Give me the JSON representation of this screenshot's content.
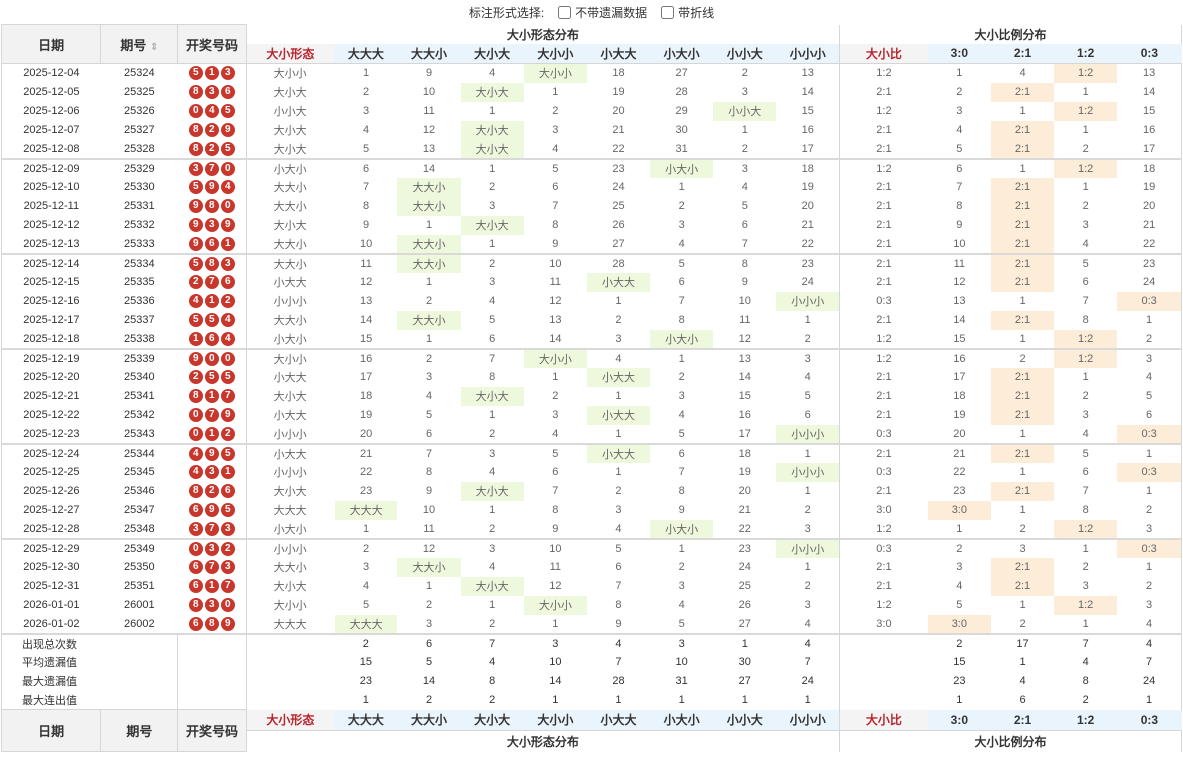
{
  "topbar": {
    "label": "标注形式选择:",
    "opt1": "不带遗漏数据",
    "opt2": "带折线"
  },
  "headers": {
    "date": "日期",
    "issue": "期号",
    "numbers": "开奖号码",
    "group1": "大小形态分布",
    "group2": "大小比例分布",
    "shape_col": "大小形态",
    "ratio_col": "大小比",
    "shapes": [
      "大大大",
      "大大小",
      "大小大",
      "大小小",
      "小大大",
      "小大小",
      "小小大",
      "小小小"
    ],
    "ratios": [
      "3:0",
      "2:1",
      "1:2",
      "0:3"
    ],
    "sort_icon": "sort-icon"
  },
  "rows": [
    {
      "date": "2025-12-04",
      "issue": "25324",
      "nums": [
        "5",
        "1",
        "3"
      ],
      "shape": "大小小",
      "m": [
        "1",
        "9",
        "4",
        "大小小",
        "18",
        "27",
        "2",
        "13"
      ],
      "h": 3,
      "ratio": "1:2",
      "r": [
        "1",
        "4",
        "1:2",
        "13"
      ],
      "rh": 2
    },
    {
      "date": "2025-12-05",
      "issue": "25325",
      "nums": [
        "8",
        "3",
        "6"
      ],
      "shape": "大小大",
      "m": [
        "2",
        "10",
        "大小大",
        "1",
        "19",
        "28",
        "3",
        "14"
      ],
      "h": 2,
      "ratio": "2:1",
      "r": [
        "2",
        "2:1",
        "1",
        "14"
      ],
      "rh": 1
    },
    {
      "date": "2025-12-06",
      "issue": "25326",
      "nums": [
        "0",
        "4",
        "5"
      ],
      "shape": "小小大",
      "m": [
        "3",
        "11",
        "1",
        "2",
        "20",
        "29",
        "小小大",
        "15"
      ],
      "h": 6,
      "ratio": "1:2",
      "r": [
        "3",
        "1",
        "1:2",
        "15"
      ],
      "rh": 2
    },
    {
      "date": "2025-12-07",
      "issue": "25327",
      "nums": [
        "8",
        "2",
        "9"
      ],
      "shape": "大小大",
      "m": [
        "4",
        "12",
        "大小大",
        "3",
        "21",
        "30",
        "1",
        "16"
      ],
      "h": 2,
      "ratio": "2:1",
      "r": [
        "4",
        "2:1",
        "1",
        "16"
      ],
      "rh": 1
    },
    {
      "date": "2025-12-08",
      "issue": "25328",
      "nums": [
        "8",
        "2",
        "5"
      ],
      "shape": "大小大",
      "m": [
        "5",
        "13",
        "大小大",
        "4",
        "22",
        "31",
        "2",
        "17"
      ],
      "h": 2,
      "ratio": "2:1",
      "r": [
        "5",
        "2:1",
        "2",
        "17"
      ],
      "rh": 1
    },
    {
      "date": "2025-12-09",
      "issue": "25329",
      "nums": [
        "3",
        "7",
        "0"
      ],
      "shape": "小大小",
      "m": [
        "6",
        "14",
        "1",
        "5",
        "23",
        "小大小",
        "3",
        "18"
      ],
      "h": 5,
      "ratio": "1:2",
      "r": [
        "6",
        "1",
        "1:2",
        "18"
      ],
      "rh": 2
    },
    {
      "date": "2025-12-10",
      "issue": "25330",
      "nums": [
        "5",
        "9",
        "4"
      ],
      "shape": "大大小",
      "m": [
        "7",
        "大大小",
        "2",
        "6",
        "24",
        "1",
        "4",
        "19"
      ],
      "h": 1,
      "ratio": "2:1",
      "r": [
        "7",
        "2:1",
        "1",
        "19"
      ],
      "rh": 1
    },
    {
      "date": "2025-12-11",
      "issue": "25331",
      "nums": [
        "9",
        "8",
        "0"
      ],
      "shape": "大大小",
      "m": [
        "8",
        "大大小",
        "3",
        "7",
        "25",
        "2",
        "5",
        "20"
      ],
      "h": 1,
      "ratio": "2:1",
      "r": [
        "8",
        "2:1",
        "2",
        "20"
      ],
      "rh": 1
    },
    {
      "date": "2025-12-12",
      "issue": "25332",
      "nums": [
        "9",
        "3",
        "9"
      ],
      "shape": "大小大",
      "m": [
        "9",
        "1",
        "大小大",
        "8",
        "26",
        "3",
        "6",
        "21"
      ],
      "h": 2,
      "ratio": "2:1",
      "r": [
        "9",
        "2:1",
        "3",
        "21"
      ],
      "rh": 1
    },
    {
      "date": "2025-12-13",
      "issue": "25333",
      "nums": [
        "9",
        "6",
        "1"
      ],
      "shape": "大大小",
      "m": [
        "10",
        "大大小",
        "1",
        "9",
        "27",
        "4",
        "7",
        "22"
      ],
      "h": 1,
      "ratio": "2:1",
      "r": [
        "10",
        "2:1",
        "4",
        "22"
      ],
      "rh": 1
    },
    {
      "date": "2025-12-14",
      "issue": "25334",
      "nums": [
        "5",
        "8",
        "3"
      ],
      "shape": "大大小",
      "m": [
        "11",
        "大大小",
        "2",
        "10",
        "28",
        "5",
        "8",
        "23"
      ],
      "h": 1,
      "ratio": "2:1",
      "r": [
        "11",
        "2:1",
        "5",
        "23"
      ],
      "rh": 1
    },
    {
      "date": "2025-12-15",
      "issue": "25335",
      "nums": [
        "2",
        "7",
        "6"
      ],
      "shape": "小大大",
      "m": [
        "12",
        "1",
        "3",
        "11",
        "小大大",
        "6",
        "9",
        "24"
      ],
      "h": 4,
      "ratio": "2:1",
      "r": [
        "12",
        "2:1",
        "6",
        "24"
      ],
      "rh": 1
    },
    {
      "date": "2025-12-16",
      "issue": "25336",
      "nums": [
        "4",
        "1",
        "2"
      ],
      "shape": "小小小",
      "m": [
        "13",
        "2",
        "4",
        "12",
        "1",
        "7",
        "10",
        "小小小"
      ],
      "h": 7,
      "ratio": "0:3",
      "r": [
        "13",
        "1",
        "7",
        "0:3"
      ],
      "rh": 3
    },
    {
      "date": "2025-12-17",
      "issue": "25337",
      "nums": [
        "5",
        "5",
        "4"
      ],
      "shape": "大大小",
      "m": [
        "14",
        "大大小",
        "5",
        "13",
        "2",
        "8",
        "11",
        "1"
      ],
      "h": 1,
      "ratio": "2:1",
      "r": [
        "14",
        "2:1",
        "8",
        "1"
      ],
      "rh": 1
    },
    {
      "date": "2025-12-18",
      "issue": "25338",
      "nums": [
        "1",
        "6",
        "4"
      ],
      "shape": "小大小",
      "m": [
        "15",
        "1",
        "6",
        "14",
        "3",
        "小大小",
        "12",
        "2"
      ],
      "h": 5,
      "ratio": "1:2",
      "r": [
        "15",
        "1",
        "1:2",
        "2"
      ],
      "rh": 2
    },
    {
      "date": "2025-12-19",
      "issue": "25339",
      "nums": [
        "9",
        "0",
        "0"
      ],
      "shape": "大小小",
      "m": [
        "16",
        "2",
        "7",
        "大小小",
        "4",
        "1",
        "13",
        "3"
      ],
      "h": 3,
      "ratio": "1:2",
      "r": [
        "16",
        "2",
        "1:2",
        "3"
      ],
      "rh": 2
    },
    {
      "date": "2025-12-20",
      "issue": "25340",
      "nums": [
        "2",
        "5",
        "5"
      ],
      "shape": "小大大",
      "m": [
        "17",
        "3",
        "8",
        "1",
        "小大大",
        "2",
        "14",
        "4"
      ],
      "h": 4,
      "ratio": "2:1",
      "r": [
        "17",
        "2:1",
        "1",
        "4"
      ],
      "rh": 1
    },
    {
      "date": "2025-12-21",
      "issue": "25341",
      "nums": [
        "8",
        "1",
        "7"
      ],
      "shape": "大小大",
      "m": [
        "18",
        "4",
        "大小大",
        "2",
        "1",
        "3",
        "15",
        "5"
      ],
      "h": 2,
      "ratio": "2:1",
      "r": [
        "18",
        "2:1",
        "2",
        "5"
      ],
      "rh": 1
    },
    {
      "date": "2025-12-22",
      "issue": "25342",
      "nums": [
        "0",
        "7",
        "9"
      ],
      "shape": "小大大",
      "m": [
        "19",
        "5",
        "1",
        "3",
        "小大大",
        "4",
        "16",
        "6"
      ],
      "h": 4,
      "ratio": "2:1",
      "r": [
        "19",
        "2:1",
        "3",
        "6"
      ],
      "rh": 1
    },
    {
      "date": "2025-12-23",
      "issue": "25343",
      "nums": [
        "0",
        "1",
        "2"
      ],
      "shape": "小小小",
      "m": [
        "20",
        "6",
        "2",
        "4",
        "1",
        "5",
        "17",
        "小小小"
      ],
      "h": 7,
      "ratio": "0:3",
      "r": [
        "20",
        "1",
        "4",
        "0:3"
      ],
      "rh": 3
    },
    {
      "date": "2025-12-24",
      "issue": "25344",
      "nums": [
        "4",
        "9",
        "5"
      ],
      "shape": "小大大",
      "m": [
        "21",
        "7",
        "3",
        "5",
        "小大大",
        "6",
        "18",
        "1"
      ],
      "h": 4,
      "ratio": "2:1",
      "r": [
        "21",
        "2:1",
        "5",
        "1"
      ],
      "rh": 1
    },
    {
      "date": "2025-12-25",
      "issue": "25345",
      "nums": [
        "4",
        "3",
        "1"
      ],
      "shape": "小小小",
      "m": [
        "22",
        "8",
        "4",
        "6",
        "1",
        "7",
        "19",
        "小小小"
      ],
      "h": 7,
      "ratio": "0:3",
      "r": [
        "22",
        "1",
        "6",
        "0:3"
      ],
      "rh": 3
    },
    {
      "date": "2025-12-26",
      "issue": "25346",
      "nums": [
        "8",
        "2",
        "6"
      ],
      "shape": "大小大",
      "m": [
        "23",
        "9",
        "大小大",
        "7",
        "2",
        "8",
        "20",
        "1"
      ],
      "h": 2,
      "ratio": "2:1",
      "r": [
        "23",
        "2:1",
        "7",
        "1"
      ],
      "rh": 1
    },
    {
      "date": "2025-12-27",
      "issue": "25347",
      "nums": [
        "6",
        "9",
        "5"
      ],
      "shape": "大大大",
      "m": [
        "大大大",
        "10",
        "1",
        "8",
        "3",
        "9",
        "21",
        "2"
      ],
      "h": 0,
      "ratio": "3:0",
      "r": [
        "3:0",
        "1",
        "8",
        "2"
      ],
      "rh": 0
    },
    {
      "date": "2025-12-28",
      "issue": "25348",
      "nums": [
        "3",
        "7",
        "3"
      ],
      "shape": "小大小",
      "m": [
        "1",
        "11",
        "2",
        "9",
        "4",
        "小大小",
        "22",
        "3"
      ],
      "h": 5,
      "ratio": "1:2",
      "r": [
        "1",
        "2",
        "1:2",
        "3"
      ],
      "rh": 2
    },
    {
      "date": "2025-12-29",
      "issue": "25349",
      "nums": [
        "0",
        "3",
        "2"
      ],
      "shape": "小小小",
      "m": [
        "2",
        "12",
        "3",
        "10",
        "5",
        "1",
        "23",
        "小小小"
      ],
      "h": 7,
      "ratio": "0:3",
      "r": [
        "2",
        "3",
        "1",
        "0:3"
      ],
      "rh": 3
    },
    {
      "date": "2025-12-30",
      "issue": "25350",
      "nums": [
        "6",
        "7",
        "3"
      ],
      "shape": "大大小",
      "m": [
        "3",
        "大大小",
        "4",
        "11",
        "6",
        "2",
        "24",
        "1"
      ],
      "h": 1,
      "ratio": "2:1",
      "r": [
        "3",
        "2:1",
        "2",
        "1"
      ],
      "rh": 1
    },
    {
      "date": "2025-12-31",
      "issue": "25351",
      "nums": [
        "6",
        "1",
        "7"
      ],
      "shape": "大小大",
      "m": [
        "4",
        "1",
        "大小大",
        "12",
        "7",
        "3",
        "25",
        "2"
      ],
      "h": 2,
      "ratio": "2:1",
      "r": [
        "4",
        "2:1",
        "3",
        "2"
      ],
      "rh": 1
    },
    {
      "date": "2026-01-01",
      "issue": "26001",
      "nums": [
        "8",
        "3",
        "0"
      ],
      "shape": "大小小",
      "m": [
        "5",
        "2",
        "1",
        "大小小",
        "8",
        "4",
        "26",
        "3"
      ],
      "h": 3,
      "ratio": "1:2",
      "r": [
        "5",
        "1",
        "1:2",
        "3"
      ],
      "rh": 2
    },
    {
      "date": "2026-01-02",
      "issue": "26002",
      "nums": [
        "6",
        "8",
        "9"
      ],
      "shape": "大大大",
      "m": [
        "大大大",
        "3",
        "2",
        "1",
        "9",
        "5",
        "27",
        "4"
      ],
      "h": 0,
      "ratio": "3:0",
      "r": [
        "3:0",
        "2",
        "1",
        "4"
      ],
      "rh": 0
    }
  ],
  "stats": [
    {
      "label": "出现总次数",
      "s": [
        "2",
        "6",
        "7",
        "3",
        "4",
        "3",
        "1",
        "4"
      ],
      "r": [
        "2",
        "17",
        "7",
        "4"
      ]
    },
    {
      "label": "平均遗漏值",
      "s": [
        "15",
        "5",
        "4",
        "10",
        "7",
        "10",
        "30",
        "7"
      ],
      "r": [
        "15",
        "1",
        "4",
        "7"
      ]
    },
    {
      "label": "最大遗漏值",
      "s": [
        "23",
        "14",
        "8",
        "14",
        "28",
        "31",
        "27",
        "24"
      ],
      "r": [
        "23",
        "4",
        "8",
        "24"
      ]
    },
    {
      "label": "最大连出值",
      "s": [
        "1",
        "2",
        "2",
        "1",
        "1",
        "1",
        "1",
        "1"
      ],
      "r": [
        "1",
        "6",
        "2",
        "1"
      ]
    }
  ]
}
